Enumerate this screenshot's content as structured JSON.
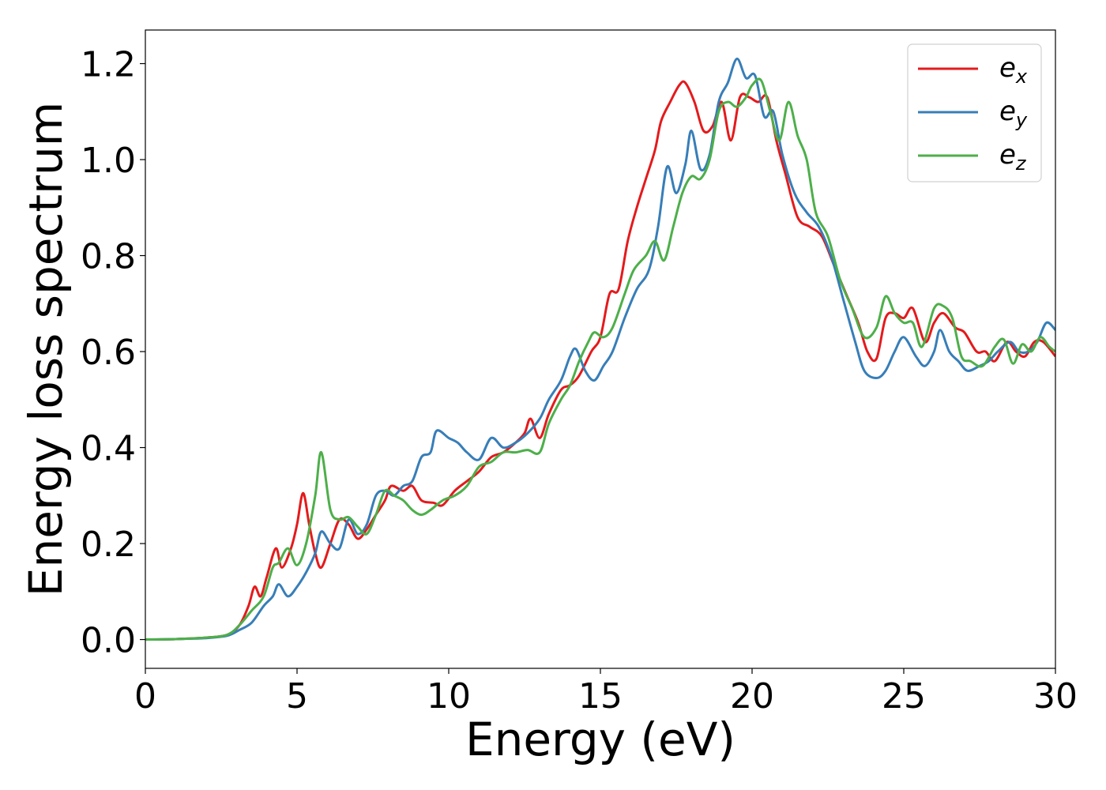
{
  "chart_data": {
    "type": "line",
    "title": "",
    "xlabel": "Energy (eV)",
    "ylabel": "Energy loss spectrum",
    "xlim": [
      0,
      30
    ],
    "ylim": [
      -0.06,
      1.27
    ],
    "xticks": [
      0,
      5,
      10,
      15,
      20,
      25,
      30
    ],
    "yticks": [
      0.0,
      0.2,
      0.4,
      0.6,
      0.8,
      1.0,
      1.2
    ],
    "xtick_labels": [
      "0",
      "5",
      "10",
      "15",
      "20",
      "25",
      "30"
    ],
    "ytick_labels": [
      "0.0",
      "0.2",
      "0.4",
      "0.6",
      "0.8",
      "1.0",
      "1.2"
    ],
    "grid": false,
    "legend_position": "top-right",
    "series": [
      {
        "name": "e_x",
        "label_base": "e",
        "label_sub": "x",
        "color": "#e41a1c",
        "points": [
          [
            0,
            0
          ],
          [
            1,
            0.001
          ],
          [
            2,
            0.004
          ],
          [
            2.7,
            0.01
          ],
          [
            3.1,
            0.03
          ],
          [
            3.4,
            0.07
          ],
          [
            3.6,
            0.11
          ],
          [
            3.8,
            0.09
          ],
          [
            4.0,
            0.13
          ],
          [
            4.3,
            0.19
          ],
          [
            4.5,
            0.15
          ],
          [
            4.8,
            0.19
          ],
          [
            5.0,
            0.24
          ],
          [
            5.2,
            0.305
          ],
          [
            5.4,
            0.24
          ],
          [
            5.6,
            0.18
          ],
          [
            5.8,
            0.15
          ],
          [
            6.1,
            0.2
          ],
          [
            6.4,
            0.25
          ],
          [
            6.7,
            0.24
          ],
          [
            7.0,
            0.21
          ],
          [
            7.3,
            0.23
          ],
          [
            7.6,
            0.26
          ],
          [
            7.9,
            0.29
          ],
          [
            8.1,
            0.32
          ],
          [
            8.5,
            0.31
          ],
          [
            8.8,
            0.32
          ],
          [
            9.1,
            0.29
          ],
          [
            9.5,
            0.285
          ],
          [
            9.8,
            0.28
          ],
          [
            10.2,
            0.31
          ],
          [
            10.6,
            0.33
          ],
          [
            11.0,
            0.35
          ],
          [
            11.4,
            0.38
          ],
          [
            11.8,
            0.39
          ],
          [
            12.2,
            0.41
          ],
          [
            12.5,
            0.43
          ],
          [
            12.7,
            0.46
          ],
          [
            13.0,
            0.42
          ],
          [
            13.3,
            0.47
          ],
          [
            13.7,
            0.52
          ],
          [
            14.0,
            0.53
          ],
          [
            14.3,
            0.55
          ],
          [
            14.7,
            0.6
          ],
          [
            15.0,
            0.63
          ],
          [
            15.3,
            0.72
          ],
          [
            15.6,
            0.73
          ],
          [
            15.9,
            0.83
          ],
          [
            16.2,
            0.9
          ],
          [
            16.5,
            0.96
          ],
          [
            16.8,
            1.02
          ],
          [
            17.0,
            1.08
          ],
          [
            17.3,
            1.12
          ],
          [
            17.6,
            1.155
          ],
          [
            17.8,
            1.16
          ],
          [
            18.1,
            1.12
          ],
          [
            18.4,
            1.06
          ],
          [
            18.7,
            1.07
          ],
          [
            19.0,
            1.12
          ],
          [
            19.3,
            1.04
          ],
          [
            19.6,
            1.13
          ],
          [
            19.9,
            1.13
          ],
          [
            20.2,
            1.12
          ],
          [
            20.5,
            1.13
          ],
          [
            20.8,
            1.04
          ],
          [
            21.1,
            0.97
          ],
          [
            21.5,
            0.88
          ],
          [
            21.9,
            0.86
          ],
          [
            22.3,
            0.84
          ],
          [
            22.7,
            0.78
          ],
          [
            23.1,
            0.72
          ],
          [
            23.5,
            0.66
          ],
          [
            23.8,
            0.6
          ],
          [
            24.1,
            0.585
          ],
          [
            24.4,
            0.67
          ],
          [
            24.7,
            0.68
          ],
          [
            25.0,
            0.67
          ],
          [
            25.3,
            0.69
          ],
          [
            25.7,
            0.62
          ],
          [
            26.0,
            0.66
          ],
          [
            26.3,
            0.68
          ],
          [
            26.7,
            0.65
          ],
          [
            27.0,
            0.64
          ],
          [
            27.4,
            0.6
          ],
          [
            27.7,
            0.6
          ],
          [
            28.0,
            0.58
          ],
          [
            28.4,
            0.62
          ],
          [
            28.7,
            0.6
          ],
          [
            29.0,
            0.59
          ],
          [
            29.3,
            0.62
          ],
          [
            29.6,
            0.62
          ],
          [
            30.0,
            0.59
          ]
        ]
      },
      {
        "name": "e_y",
        "label_base": "e",
        "label_sub": "y",
        "color": "#377eb8",
        "points": [
          [
            0,
            0
          ],
          [
            1,
            0.001
          ],
          [
            2,
            0.003
          ],
          [
            2.7,
            0.008
          ],
          [
            3.1,
            0.02
          ],
          [
            3.5,
            0.035
          ],
          [
            3.9,
            0.07
          ],
          [
            4.2,
            0.09
          ],
          [
            4.4,
            0.115
          ],
          [
            4.7,
            0.09
          ],
          [
            5.0,
            0.11
          ],
          [
            5.3,
            0.14
          ],
          [
            5.6,
            0.18
          ],
          [
            5.8,
            0.225
          ],
          [
            6.1,
            0.2
          ],
          [
            6.4,
            0.19
          ],
          [
            6.7,
            0.25
          ],
          [
            7.0,
            0.22
          ],
          [
            7.3,
            0.24
          ],
          [
            7.6,
            0.3
          ],
          [
            7.9,
            0.31
          ],
          [
            8.2,
            0.3
          ],
          [
            8.5,
            0.32
          ],
          [
            8.8,
            0.33
          ],
          [
            9.1,
            0.38
          ],
          [
            9.4,
            0.39
          ],
          [
            9.6,
            0.435
          ],
          [
            10.0,
            0.42
          ],
          [
            10.3,
            0.41
          ],
          [
            10.6,
            0.39
          ],
          [
            11.0,
            0.375
          ],
          [
            11.4,
            0.42
          ],
          [
            11.8,
            0.4
          ],
          [
            12.2,
            0.41
          ],
          [
            12.6,
            0.43
          ],
          [
            13.0,
            0.46
          ],
          [
            13.3,
            0.5
          ],
          [
            13.7,
            0.54
          ],
          [
            14.0,
            0.59
          ],
          [
            14.2,
            0.605
          ],
          [
            14.5,
            0.56
          ],
          [
            14.8,
            0.54
          ],
          [
            15.1,
            0.57
          ],
          [
            15.4,
            0.6
          ],
          [
            15.8,
            0.67
          ],
          [
            16.2,
            0.73
          ],
          [
            16.6,
            0.77
          ],
          [
            16.9,
            0.86
          ],
          [
            17.2,
            0.985
          ],
          [
            17.5,
            0.93
          ],
          [
            17.8,
            0.99
          ],
          [
            18.0,
            1.06
          ],
          [
            18.3,
            0.98
          ],
          [
            18.6,
            1.01
          ],
          [
            18.9,
            1.12
          ],
          [
            19.2,
            1.16
          ],
          [
            19.5,
            1.21
          ],
          [
            19.8,
            1.17
          ],
          [
            20.1,
            1.175
          ],
          [
            20.4,
            1.09
          ],
          [
            20.7,
            1.1
          ],
          [
            21.0,
            1.01
          ],
          [
            21.4,
            0.93
          ],
          [
            21.8,
            0.89
          ],
          [
            22.2,
            0.86
          ],
          [
            22.6,
            0.8
          ],
          [
            23.0,
            0.71
          ],
          [
            23.4,
            0.62
          ],
          [
            23.7,
            0.56
          ],
          [
            24.1,
            0.545
          ],
          [
            24.4,
            0.56
          ],
          [
            24.7,
            0.6
          ],
          [
            25.0,
            0.63
          ],
          [
            25.4,
            0.59
          ],
          [
            25.7,
            0.57
          ],
          [
            26.0,
            0.6
          ],
          [
            26.2,
            0.645
          ],
          [
            26.5,
            0.6
          ],
          [
            26.8,
            0.58
          ],
          [
            27.1,
            0.56
          ],
          [
            27.5,
            0.57
          ],
          [
            27.8,
            0.58
          ],
          [
            28.1,
            0.6
          ],
          [
            28.5,
            0.62
          ],
          [
            28.8,
            0.6
          ],
          [
            29.1,
            0.6
          ],
          [
            29.4,
            0.62
          ],
          [
            29.7,
            0.66
          ],
          [
            30.0,
            0.645
          ]
        ]
      },
      {
        "name": "e_z",
        "label_base": "e",
        "label_sub": "z",
        "color": "#4daf4a",
        "points": [
          [
            0,
            0
          ],
          [
            1,
            0.001
          ],
          [
            2,
            0.004
          ],
          [
            2.7,
            0.01
          ],
          [
            3.1,
            0.03
          ],
          [
            3.5,
            0.06
          ],
          [
            3.9,
            0.09
          ],
          [
            4.2,
            0.15
          ],
          [
            4.4,
            0.16
          ],
          [
            4.7,
            0.19
          ],
          [
            5.0,
            0.155
          ],
          [
            5.3,
            0.2
          ],
          [
            5.6,
            0.3
          ],
          [
            5.8,
            0.39
          ],
          [
            6.1,
            0.27
          ],
          [
            6.4,
            0.25
          ],
          [
            6.7,
            0.255
          ],
          [
            7.0,
            0.235
          ],
          [
            7.3,
            0.22
          ],
          [
            7.6,
            0.26
          ],
          [
            7.9,
            0.31
          ],
          [
            8.2,
            0.3
          ],
          [
            8.5,
            0.29
          ],
          [
            8.8,
            0.27
          ],
          [
            9.1,
            0.26
          ],
          [
            9.4,
            0.27
          ],
          [
            9.8,
            0.29
          ],
          [
            10.2,
            0.3
          ],
          [
            10.6,
            0.32
          ],
          [
            11.0,
            0.36
          ],
          [
            11.4,
            0.37
          ],
          [
            11.8,
            0.39
          ],
          [
            12.2,
            0.39
          ],
          [
            12.6,
            0.395
          ],
          [
            13.0,
            0.39
          ],
          [
            13.3,
            0.45
          ],
          [
            13.7,
            0.5
          ],
          [
            14.0,
            0.53
          ],
          [
            14.3,
            0.58
          ],
          [
            14.6,
            0.62
          ],
          [
            14.8,
            0.64
          ],
          [
            15.1,
            0.63
          ],
          [
            15.4,
            0.65
          ],
          [
            15.8,
            0.72
          ],
          [
            16.1,
            0.77
          ],
          [
            16.5,
            0.8
          ],
          [
            16.8,
            0.83
          ],
          [
            17.1,
            0.79
          ],
          [
            17.4,
            0.86
          ],
          [
            17.7,
            0.93
          ],
          [
            18.0,
            0.965
          ],
          [
            18.3,
            0.96
          ],
          [
            18.6,
            1.0
          ],
          [
            18.9,
            1.1
          ],
          [
            19.2,
            1.12
          ],
          [
            19.5,
            1.11
          ],
          [
            19.8,
            1.13
          ],
          [
            20.0,
            1.155
          ],
          [
            20.3,
            1.165
          ],
          [
            20.6,
            1.1
          ],
          [
            20.9,
            1.04
          ],
          [
            21.2,
            1.12
          ],
          [
            21.5,
            1.05
          ],
          [
            21.8,
            1.0
          ],
          [
            22.1,
            0.89
          ],
          [
            22.5,
            0.84
          ],
          [
            22.9,
            0.75
          ],
          [
            23.3,
            0.69
          ],
          [
            23.7,
            0.63
          ],
          [
            24.1,
            0.65
          ],
          [
            24.4,
            0.715
          ],
          [
            24.7,
            0.68
          ],
          [
            25.0,
            0.66
          ],
          [
            25.3,
            0.66
          ],
          [
            25.6,
            0.61
          ],
          [
            26.0,
            0.69
          ],
          [
            26.3,
            0.695
          ],
          [
            26.6,
            0.67
          ],
          [
            26.9,
            0.59
          ],
          [
            27.2,
            0.58
          ],
          [
            27.6,
            0.57
          ],
          [
            28.0,
            0.61
          ],
          [
            28.3,
            0.625
          ],
          [
            28.6,
            0.575
          ],
          [
            28.9,
            0.615
          ],
          [
            29.2,
            0.6
          ],
          [
            29.5,
            0.63
          ],
          [
            29.8,
            0.61
          ],
          [
            30.0,
            0.6
          ]
        ]
      }
    ]
  }
}
